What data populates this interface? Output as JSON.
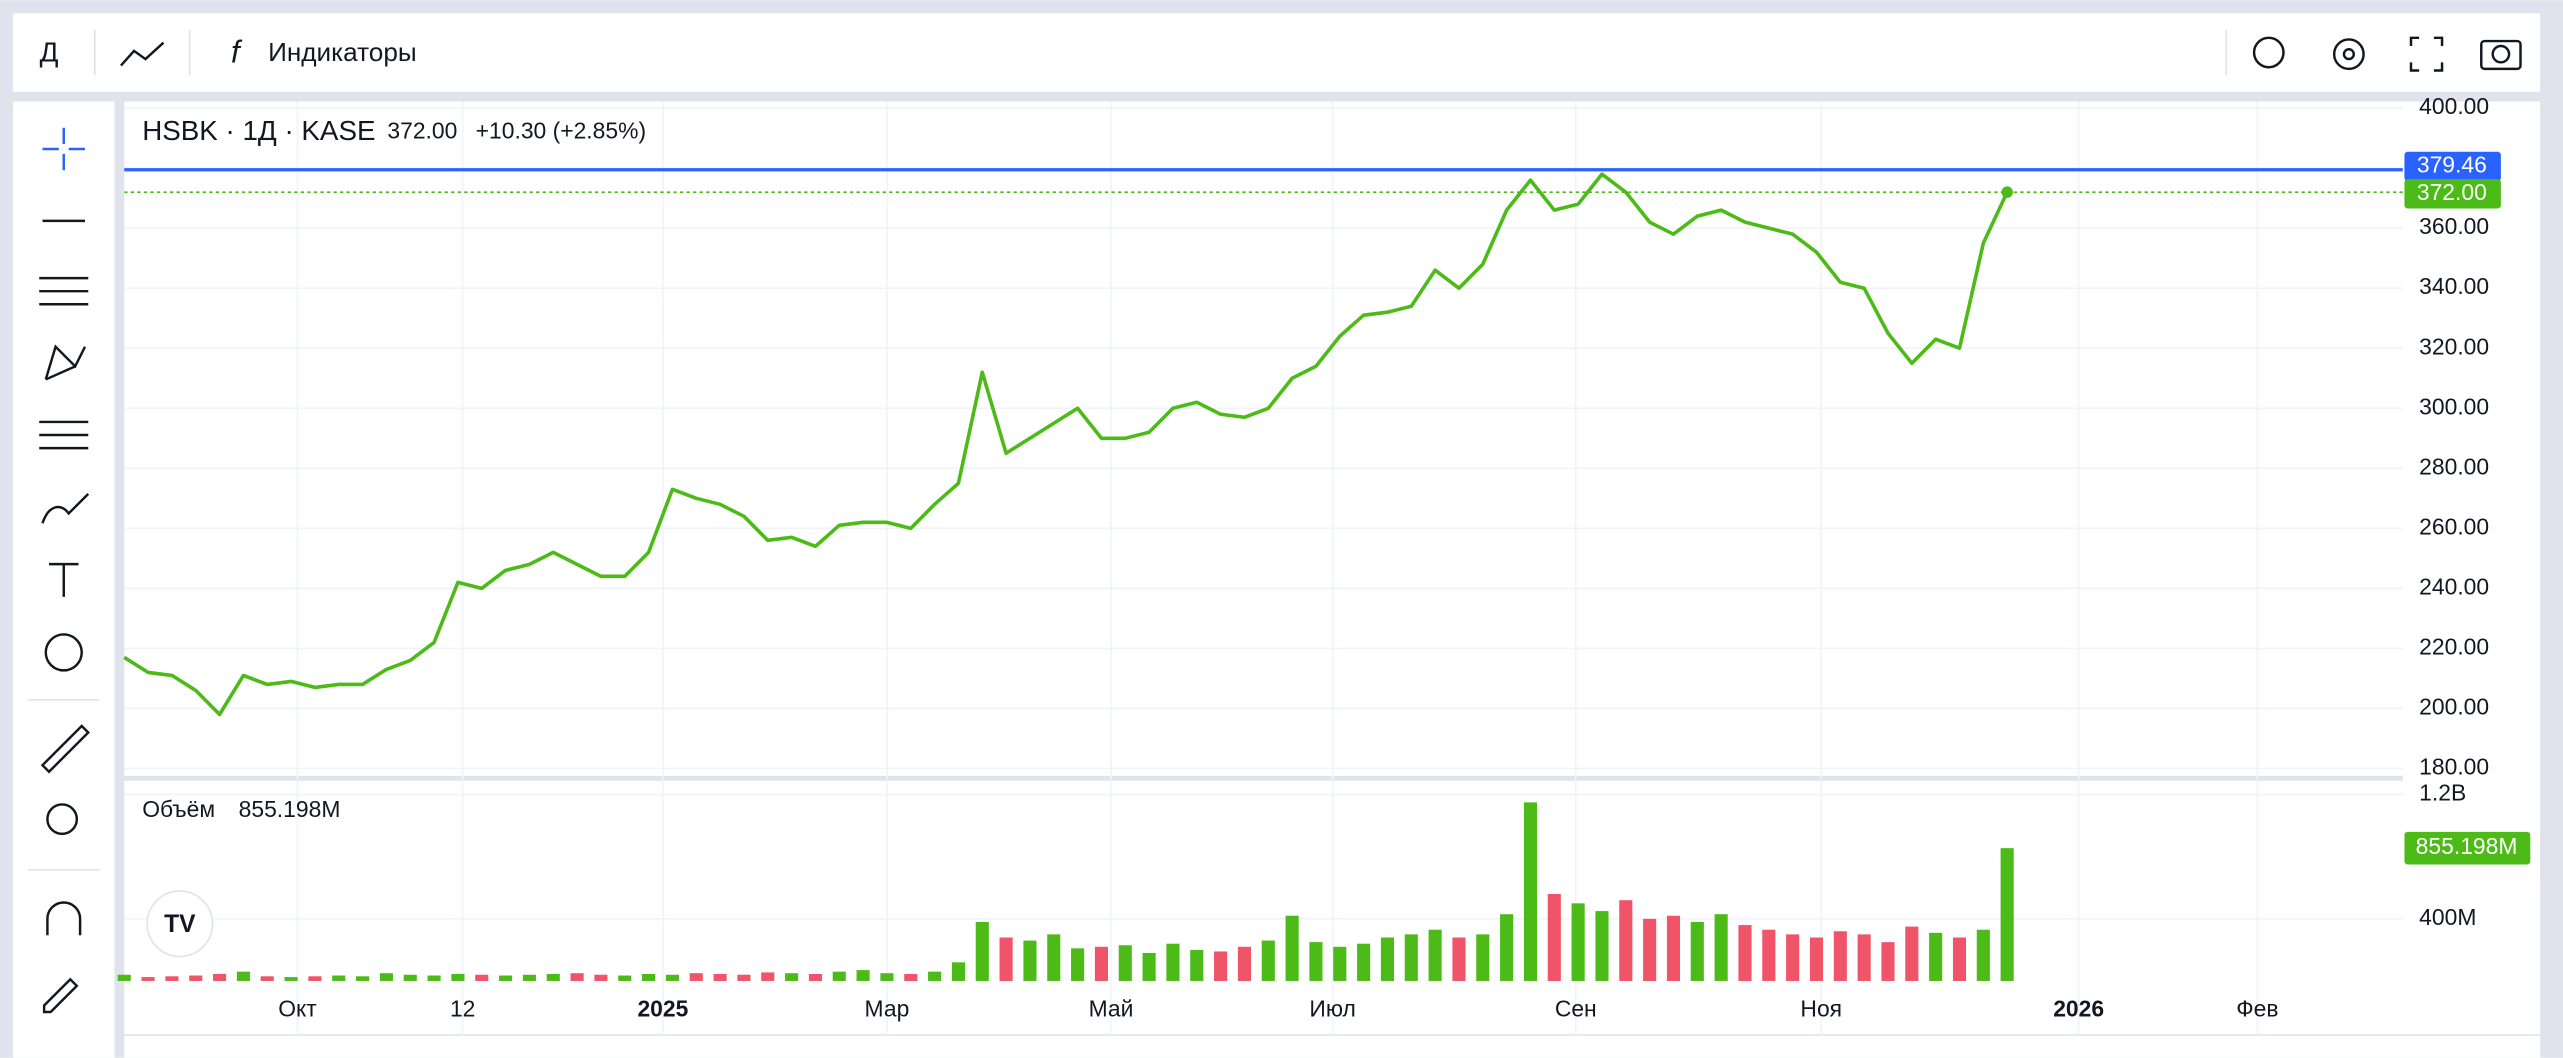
{
  "toolbar": {
    "timeframe": "Д",
    "indicators": "Индикаторы"
  },
  "chart_data": {
    "type": "line",
    "title": "HSBK · 1Д · KASE",
    "change_label": "+10.30 (+2.85%)",
    "color": "#4cbb17",
    "grid": true,
    "x": [
      0,
      1,
      2,
      3,
      4,
      5,
      6,
      7,
      8,
      9,
      10,
      11,
      12,
      13,
      14,
      15,
      16,
      17,
      18,
      19,
      20,
      21,
      22,
      23,
      24,
      25,
      26,
      27,
      28,
      29,
      30,
      31,
      32,
      33,
      34,
      35,
      36,
      37,
      38,
      39,
      40,
      41,
      42,
      43,
      44,
      45,
      46,
      47,
      48,
      49,
      50,
      51,
      52,
      53,
      54,
      55,
      56,
      57,
      58,
      59,
      60,
      61,
      62,
      63,
      64,
      65,
      66,
      67,
      68,
      69,
      70,
      71,
      72,
      73,
      74,
      75,
      76,
      77,
      78,
      79
    ],
    "values": [
      217,
      212,
      211,
      206,
      198,
      211,
      208,
      209,
      207,
      208,
      208,
      213,
      216,
      222,
      242,
      240,
      246,
      248,
      252,
      248,
      244,
      244,
      252,
      273,
      270,
      268,
      264,
      256,
      257,
      254,
      261,
      262,
      262,
      260,
      268,
      275,
      312,
      285,
      290,
      295,
      300,
      290,
      290,
      292,
      300,
      302,
      298,
      297,
      300,
      310,
      314,
      324,
      331,
      332,
      334,
      346,
      340,
      348,
      366,
      376,
      366,
      368,
      378,
      372,
      362,
      358,
      364,
      366,
      362,
      360,
      358,
      352,
      342,
      340,
      325,
      315,
      323,
      320,
      355,
      372
    ],
    "xlim": [
      0,
      95.6
    ],
    "xticks": [
      {
        "value": 7.27,
        "label": "Окт"
      },
      {
        "value": 14.2,
        "label": "12"
      },
      {
        "value": 22.6,
        "label": "2025"
      },
      {
        "value": 32.0,
        "label": "Мар"
      },
      {
        "value": 41.4,
        "label": "Май"
      },
      {
        "value": 50.7,
        "label": "Июл"
      },
      {
        "value": 60.9,
        "label": "Сен"
      },
      {
        "value": 71.2,
        "label": "Ноя"
      },
      {
        "value": 82.0,
        "label": "2026"
      },
      {
        "value": 89.5,
        "label": "Фев"
      }
    ],
    "ylim": [
      180,
      400
    ],
    "yticks": [
      {
        "value": 180,
        "label": "180.00"
      },
      {
        "value": 200,
        "label": "200.00"
      },
      {
        "value": 220,
        "label": "220.00"
      },
      {
        "value": 240,
        "label": "240.00"
      },
      {
        "value": 260,
        "label": "260.00"
      },
      {
        "value": 280,
        "label": "280.00"
      },
      {
        "value": 300,
        "label": "300.00"
      },
      {
        "value": 320,
        "label": "320.00"
      },
      {
        "value": 340,
        "label": "340.00"
      },
      {
        "value": 360,
        "label": "360.00"
      },
      {
        "value": 380,
        "label": "380.00"
      },
      {
        "value": 400,
        "label": "400.00"
      }
    ],
    "level": {
      "value": 379.46,
      "label": "379.46",
      "color": "#2962ff"
    },
    "last_price": {
      "value": 372,
      "label": "372.00"
    },
    "volume": {
      "type": "bar",
      "title": "Объём",
      "up_color": "#4cbb17",
      "down_color": "#f05468",
      "values": [
        40,
        25,
        30,
        35,
        45,
        60,
        30,
        25,
        30,
        35,
        30,
        50,
        40,
        35,
        45,
        40,
        35,
        40,
        45,
        50,
        40,
        35,
        45,
        40,
        50,
        45,
        40,
        55,
        50,
        45,
        60,
        70,
        50,
        45,
        60,
        120,
        380,
        280,
        260,
        300,
        210,
        220,
        230,
        180,
        240,
        200,
        190,
        220,
        260,
        420,
        250,
        220,
        240,
        280,
        300,
        330,
        280,
        300,
        430,
        1150,
        560,
        500,
        450,
        520,
        400,
        420,
        380,
        430,
        360,
        330,
        300,
        280,
        320,
        300,
        250,
        350,
        310,
        280,
        330,
        855.198
      ],
      "ylim": [
        0,
        1200
      ],
      "yticks": [
        {
          "value": 1200,
          "label": "1.2B"
        },
        {
          "value": 400,
          "label": "400M"
        }
      ],
      "last": {
        "value": 855.198,
        "label": "855.198M"
      }
    }
  }
}
